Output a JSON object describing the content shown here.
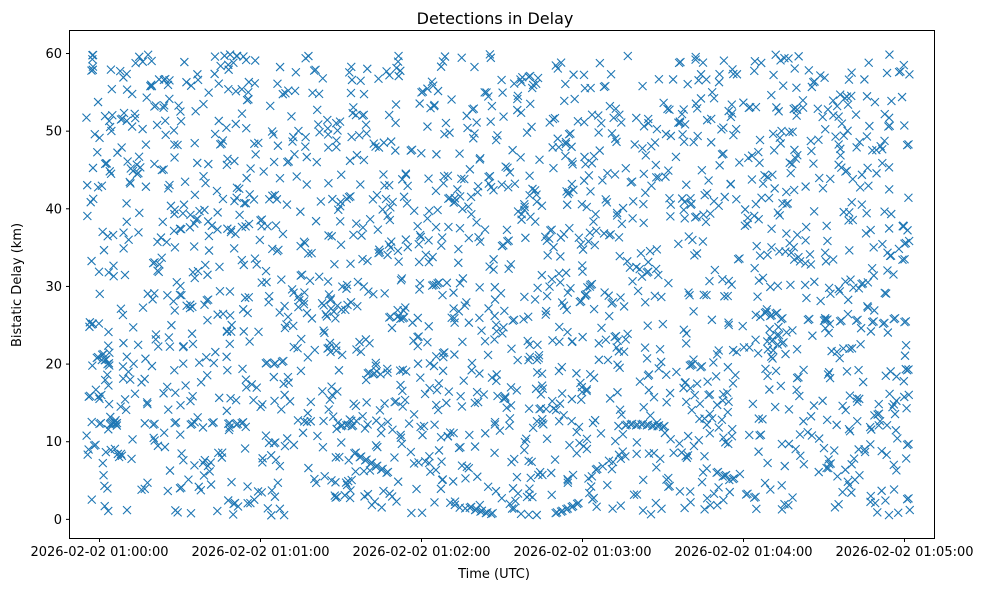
{
  "chart_data": {
    "type": "scatter",
    "title": "Detections in Delay",
    "xlabel": "Time (UTC)",
    "ylabel": "Bistatic Delay (km)",
    "marker": "x",
    "color": "#1f77b4",
    "grid": false,
    "xlim": [
      "2026-02-02 00:59:49",
      "2026-02-02 01:05:11"
    ],
    "ylim": [
      -2.4,
      62.9
    ],
    "xticks": [
      "2026-02-02 01:00:00",
      "2026-02-02 01:01:00",
      "2026-02-02 01:02:00",
      "2026-02-02 01:03:00",
      "2026-02-02 01:04:00",
      "2026-02-02 01:05:00"
    ],
    "yticks": [
      0,
      10,
      20,
      30,
      40,
      50,
      60
    ],
    "series": [
      {
        "points": [
          [
            "2026-02-02 00:59:56",
            15.8
          ],
          [
            "2026-02-02 00:59:57",
            25.1
          ],
          [
            "2026-02-02 00:59:58",
            9.5
          ],
          [
            "2026-02-02 00:59:59",
            20.8
          ],
          [
            "2026-02-02 01:00:00",
            12.3
          ],
          [
            "2026-02-02 01:00:01",
            21.2
          ],
          [
            "2026-02-02 01:00:02",
            20.5
          ],
          [
            "2026-02-02 01:00:03",
            20.0
          ],
          [
            "2026-02-02 01:00:04",
            12.2
          ],
          [
            "2026-02-02 01:00:05",
            12.4
          ],
          [
            "2026-02-02 01:00:06",
            12.3
          ],
          [
            "2026-02-02 01:00:20",
            12.2
          ],
          [
            "2026-02-02 01:00:28",
            12.4
          ],
          [
            "2026-02-02 01:00:34",
            12.2
          ],
          [
            "2026-02-02 01:00:42",
            12.4
          ],
          [
            "2026-02-02 01:00:48",
            12.3
          ],
          [
            "2026-02-02 01:00:51",
            12.2
          ],
          [
            "2026-02-02 01:00:53",
            12.4
          ],
          [
            "2026-02-02 01:01:02",
            20.1
          ],
          [
            "2026-02-02 01:01:05",
            20.0
          ],
          [
            "2026-02-02 01:01:08",
            20.3
          ],
          [
            "2026-02-02 01:01:30",
            12.0
          ],
          [
            "2026-02-02 01:01:32",
            12.1
          ],
          [
            "2026-02-02 01:01:34",
            12.0
          ],
          [
            "2026-02-02 01:01:40",
            18.8
          ],
          [
            "2026-02-02 01:01:42",
            18.7
          ],
          [
            "2026-02-02 01:01:48",
            26.0
          ],
          [
            "2026-02-02 01:01:51",
            26.1
          ],
          [
            "2026-02-02 01:01:53",
            25.9
          ],
          [
            "2026-02-02 01:01:35",
            8.5
          ],
          [
            "2026-02-02 01:01:37",
            8.0
          ],
          [
            "2026-02-02 01:01:39",
            7.6
          ],
          [
            "2026-02-02 01:01:41",
            7.2
          ],
          [
            "2026-02-02 01:01:43",
            6.8
          ],
          [
            "2026-02-02 01:01:45",
            6.4
          ],
          [
            "2026-02-02 01:01:47",
            6.0
          ],
          [
            "2026-02-02 01:02:04",
            30.1
          ],
          [
            "2026-02-02 01:02:06",
            30.4
          ],
          [
            "2026-02-02 01:02:10",
            41.3
          ],
          [
            "2026-02-02 01:02:12",
            40.8
          ],
          [
            "2026-02-02 01:02:18",
            1.5
          ],
          [
            "2026-02-02 01:02:20",
            1.2
          ],
          [
            "2026-02-02 01:02:22",
            1.0
          ],
          [
            "2026-02-02 01:02:24",
            0.8
          ],
          [
            "2026-02-02 01:02:26",
            0.7
          ],
          [
            "2026-02-02 01:02:30",
            35.2
          ],
          [
            "2026-02-02 01:02:32",
            35.8
          ],
          [
            "2026-02-02 01:02:50",
            0.8
          ],
          [
            "2026-02-02 01:02:52",
            1.0
          ],
          [
            "2026-02-02 01:02:54",
            1.3
          ],
          [
            "2026-02-02 01:02:56",
            1.6
          ],
          [
            "2026-02-02 01:02:58",
            2.0
          ],
          [
            "2026-02-02 01:02:59",
            28.0
          ],
          [
            "2026-02-02 01:03:01",
            28.9
          ],
          [
            "2026-02-02 01:03:03",
            30.2
          ],
          [
            "2026-02-02 01:03:10",
            36.6
          ],
          [
            "2026-02-02 01:03:16",
            12.1
          ],
          [
            "2026-02-02 01:03:18",
            12.2
          ],
          [
            "2026-02-02 01:03:20",
            12.1
          ],
          [
            "2026-02-02 01:03:22",
            12.2
          ],
          [
            "2026-02-02 01:03:24",
            12.1
          ],
          [
            "2026-02-02 01:03:26",
            12.0
          ],
          [
            "2026-02-02 01:03:28",
            12.0
          ],
          [
            "2026-02-02 01:03:30",
            11.9
          ],
          [
            "2026-02-02 01:03:40",
            19.8
          ],
          [
            "2026-02-02 01:03:44",
            19.6
          ],
          [
            "2026-02-02 01:03:50",
            6.0
          ],
          [
            "2026-02-02 01:03:53",
            5.6
          ],
          [
            "2026-02-02 01:03:56",
            5.2
          ],
          [
            "2026-02-02 01:04:01",
            3.2
          ],
          [
            "2026-02-02 01:04:04",
            2.8
          ],
          [
            "2026-02-02 01:04:08",
            26.6
          ],
          [
            "2026-02-02 01:04:10",
            26.2
          ],
          [
            "2026-02-02 01:04:12",
            26.5
          ],
          [
            "2026-02-02 01:04:14",
            25.8
          ],
          [
            "2026-02-02 01:04:24",
            25.7
          ],
          [
            "2026-02-02 01:04:30",
            25.6
          ],
          [
            "2026-02-02 01:04:36",
            25.5
          ],
          [
            "2026-02-02 01:04:42",
            25.6
          ],
          [
            "2026-02-02 01:04:48",
            25.4
          ],
          [
            "2026-02-02 01:04:52",
            25.2
          ],
          [
            "2026-02-02 01:04:56",
            25.8
          ],
          [
            "2026-02-02 01:05:00",
            25.4
          ],
          [
            "2026-02-02 00:59:57",
            57.8
          ],
          [
            "2026-02-02 01:00:08",
            51.5
          ],
          [
            "2026-02-02 01:00:14",
            44.5
          ],
          [
            "2026-02-02 01:00:20",
            33.0
          ],
          [
            "2026-02-02 01:00:24",
            56.6
          ],
          [
            "2026-02-02 01:00:30",
            4.0
          ],
          [
            "2026-02-02 01:00:36",
            38.6
          ],
          [
            "2026-02-02 01:00:40",
            28.2
          ],
          [
            "2026-02-02 01:00:45",
            48.3
          ],
          [
            "2026-02-02 01:00:50",
            2.0
          ],
          [
            "2026-02-02 01:00:55",
            54.0
          ],
          [
            "2026-02-02 01:01:00",
            38.5
          ],
          [
            "2026-02-02 01:01:05",
            9.8
          ],
          [
            "2026-02-02 01:01:10",
            46.0
          ],
          [
            "2026-02-02 01:01:15",
            31.4
          ],
          [
            "2026-02-02 01:01:20",
            57.8
          ],
          [
            "2026-02-02 01:01:25",
            22.0
          ],
          [
            "2026-02-02 01:01:28",
            2.8
          ],
          [
            "2026-02-02 01:01:33",
            41.5
          ],
          [
            "2026-02-02 01:01:38",
            52.0
          ],
          [
            "2026-02-02 01:01:44",
            34.3
          ],
          [
            "2026-02-02 01:01:50",
            15.1
          ],
          [
            "2026-02-02 01:01:56",
            47.5
          ],
          [
            "2026-02-02 01:02:00",
            55.0
          ],
          [
            "2026-02-02 01:02:08",
            21.4
          ],
          [
            "2026-02-02 01:02:14",
            9.2
          ],
          [
            "2026-02-02 01:02:19",
            52.8
          ],
          [
            "2026-02-02 01:02:25",
            44.1
          ],
          [
            "2026-02-02 01:02:34",
            25.6
          ],
          [
            "2026-02-02 01:02:40",
            57.0
          ],
          [
            "2026-02-02 01:02:44",
            14.2
          ],
          [
            "2026-02-02 01:02:48",
            37.2
          ],
          [
            "2026-02-02 01:02:55",
            49.6
          ],
          [
            "2026-02-02 01:03:05",
            6.4
          ],
          [
            "2026-02-02 01:03:08",
            55.7
          ],
          [
            "2026-02-02 01:03:12",
            23.5
          ],
          [
            "2026-02-02 01:03:18",
            43.4
          ],
          [
            "2026-02-02 01:03:24",
            31.8
          ],
          [
            "2026-02-02 01:03:32",
            4.2
          ],
          [
            "2026-02-02 01:03:36",
            58.8
          ],
          [
            "2026-02-02 01:03:42",
            38.9
          ],
          [
            "2026-02-02 01:03:47",
            16.0
          ],
          [
            "2026-02-02 01:03:52",
            47.0
          ],
          [
            "2026-02-02 01:03:58",
            33.5
          ],
          [
            "2026-02-02 01:04:02",
            53.0
          ],
          [
            "2026-02-02 01:04:06",
            10.8
          ],
          [
            "2026-02-02 01:04:16",
            40.6
          ],
          [
            "2026-02-02 01:04:20",
            18.2
          ],
          [
            "2026-02-02 01:04:26",
            56.3
          ],
          [
            "2026-02-02 01:04:32",
            7.1
          ],
          [
            "2026-02-02 01:04:38",
            44.8
          ],
          [
            "2026-02-02 01:04:44",
            30.3
          ],
          [
            "2026-02-02 01:04:50",
            13.5
          ],
          [
            "2026-02-02 01:04:54",
            50.6
          ],
          [
            "2026-02-02 01:04:58",
            57.6
          ],
          [
            "2026-02-02 01:05:00",
            35.5
          ],
          [
            "2026-02-02 01:05:01",
            9.6
          ],
          [
            "2026-02-02 01:05:01",
            48.2
          ],
          [
            "2026-02-02 01:05:01",
            19.2
          ],
          [
            "2026-02-02 01:05:01",
            2.6
          ]
        ],
        "background_cloud": {
          "count": 1850,
          "seed": 7,
          "x_range": [
            "2026-02-02 00:59:55",
            "2026-02-02 01:05:02"
          ],
          "y_range": [
            0.5,
            59.9
          ]
        }
      }
    ]
  }
}
